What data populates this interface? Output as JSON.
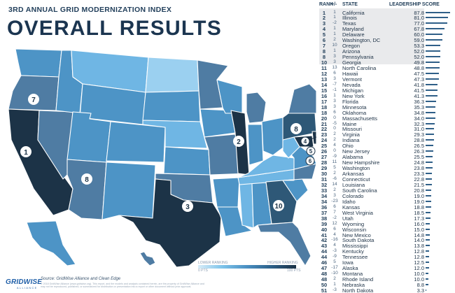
{
  "header": {
    "subtitle": "3RD ANNUAL GRID MODERNIZATION INDEX",
    "title": "OVERALL RESULTS"
  },
  "legend": {
    "low_label": "LOWER RANKING",
    "high_label": "HIGHER RANKING",
    "low_value": "0 PTS",
    "high_value": "100 PTS",
    "gradient_colors": [
      "#d8ecf8",
      "#7cc3ea",
      "#4a8fc2",
      "#2b5f88",
      "#1a3146"
    ]
  },
  "footer": {
    "source": "Source: GridWise Alliance and Clean Edge",
    "fine_print": "© 2018 GridWise Alliance (www.gridwise.org). This report, and the models and analysis contained herein, are the property of GridWise Alliance and may not be reproduced, published, or summarized for distribution or presentation into a report or other document without prior approval.",
    "logo_text": "GRIDWISE",
    "logo_sub": "ALLIANCE"
  },
  "map_markers": [
    {
      "rank": "1",
      "state": "California"
    },
    {
      "rank": "2",
      "state": "Illinois"
    },
    {
      "rank": "3",
      "state": "Texas"
    },
    {
      "rank": "4",
      "state": "Maryland"
    },
    {
      "rank": "5",
      "state": "Delaware"
    },
    {
      "rank": "6",
      "state": "Washington, DC"
    },
    {
      "rank": "7",
      "state": "Oregon"
    },
    {
      "rank": "8",
      "state": "Arizona"
    },
    {
      "rank": "8",
      "state": "Pennsylvania"
    },
    {
      "rank": "10",
      "state": "Georgia"
    }
  ],
  "map_colors": {
    "tier_top": "#1c3347",
    "tier_high": "#2e5877",
    "tier_upper": "#4f7ca3",
    "tier_mid": "#4d94c6",
    "tier_low": "#6fb6e4",
    "tier_lowest": "#9bd0f0",
    "border": "#ffffff"
  },
  "chart_data": {
    "type": "bar",
    "title": "OVERALL RESULTS",
    "columns": [
      "RANK",
      "+/-",
      "STATE",
      "LEADERSHIP SCORE"
    ],
    "xlim": [
      0,
      100
    ],
    "highlight_top": 10,
    "bar_color": "#2f5f88",
    "rows": [
      {
        "rank": "1",
        "change": "1",
        "state": "California",
        "score": "87.8",
        "value": 87.8
      },
      {
        "rank": "2",
        "change": "1",
        "state": "Illinois",
        "score": "81.0",
        "value": 81.0
      },
      {
        "rank": "3",
        "change": "-2",
        "state": "Texas",
        "score": "77.0",
        "value": 77.0
      },
      {
        "rank": "4",
        "change": "1",
        "state": "Maryland",
        "score": "67.8",
        "value": 67.8
      },
      {
        "rank": "5",
        "change": "1",
        "state": "Delaware",
        "score": "60.0",
        "value": 60.0
      },
      {
        "rank": "6",
        "change": "2",
        "state": "Washington, DC",
        "score": "59.0",
        "value": 59.0
      },
      {
        "rank": "7",
        "change": "10",
        "state": "Oregon",
        "score": "53.3",
        "value": 53.3
      },
      {
        "rank": "8",
        "change": "1",
        "state": "Arizona",
        "score": "52.0",
        "value": 52.0
      },
      {
        "rank": "8",
        "change": "3",
        "state": "Pennsylvania",
        "score": "52.0",
        "value": 52.0
      },
      {
        "rank": "10",
        "change": "3",
        "state": "Georgia",
        "score": "49.8",
        "value": 49.8
      },
      {
        "rank": "11",
        "change": "13",
        "state": "North Carolina",
        "score": "48.8",
        "value": 48.8
      },
      {
        "rank": "12",
        "change": "6",
        "state": "Hawaii",
        "score": "47.5",
        "value": 47.5
      },
      {
        "rank": "13",
        "change": "3",
        "state": "Vermont",
        "score": "47.3",
        "value": 47.3
      },
      {
        "rank": "14",
        "change": "-7",
        "state": "Nevada",
        "score": "41.8",
        "value": 41.8
      },
      {
        "rank": "15",
        "change": "-1",
        "state": "Michigan",
        "score": "41.5",
        "value": 41.5
      },
      {
        "rank": "16",
        "change": "1",
        "state": "New York",
        "score": "41.3",
        "value": 41.3
      },
      {
        "rank": "17",
        "change": "3",
        "state": "Florida",
        "score": "36.3",
        "value": 36.3
      },
      {
        "rank": "18",
        "change": "3",
        "state": "Minnesota",
        "score": "35.3",
        "value": 35.3
      },
      {
        "rank": "18",
        "change": "6",
        "state": "Oklahoma",
        "score": "34.8",
        "value": 34.8
      },
      {
        "rank": "20",
        "change": "0",
        "state": "Massachusetts",
        "score": "34.0",
        "value": 34.0
      },
      {
        "rank": "21",
        "change": "-5",
        "state": "Maine",
        "score": "32.3",
        "value": 32.3
      },
      {
        "rank": "22",
        "change": "0",
        "state": "Missouri",
        "score": "31.0",
        "value": 31.0
      },
      {
        "rank": "23",
        "change": "2",
        "state": "Virginia",
        "score": "29.3",
        "value": 29.3
      },
      {
        "rank": "24",
        "change": "2",
        "state": "Indiana",
        "score": "28.8",
        "value": 28.8
      },
      {
        "rank": "25",
        "change": "4",
        "state": "Ohio",
        "score": "26.5",
        "value": 26.5
      },
      {
        "rank": "26",
        "change": "0",
        "state": "New Jersey",
        "score": "26.3",
        "value": 26.3
      },
      {
        "rank": "27",
        "change": "-9",
        "state": "Alabama",
        "score": "25.5",
        "value": 25.5
      },
      {
        "rank": "28",
        "change": "11",
        "state": "New Hampshire",
        "score": "24.8",
        "value": 24.8
      },
      {
        "rank": "29",
        "change": "5",
        "state": "Washington",
        "score": "23.8",
        "value": 23.8
      },
      {
        "rank": "30",
        "change": "2",
        "state": "Arkansas",
        "score": "23.3",
        "value": 23.3
      },
      {
        "rank": "31",
        "change": "-6",
        "state": "Connecticut",
        "score": "22.8",
        "value": 22.8
      },
      {
        "rank": "32",
        "change": "14",
        "state": "Louisiana",
        "score": "21.5",
        "value": 21.5
      },
      {
        "rank": "33",
        "change": "2",
        "state": "South Carolina",
        "score": "20.8",
        "value": 20.8
      },
      {
        "rank": "34",
        "change": "3",
        "state": "Colorado",
        "score": "19.0",
        "value": 19.0
      },
      {
        "rank": "34",
        "change": "-23",
        "state": "Idaho",
        "score": "19.0",
        "value": 19.0
      },
      {
        "rank": "36",
        "change": "6",
        "state": "Kansas",
        "score": "18.8",
        "value": 18.8
      },
      {
        "rank": "37",
        "change": "7",
        "state": "West Virginia",
        "score": "18.5",
        "value": 18.5
      },
      {
        "rank": "38",
        "change": "-2",
        "state": "Utah",
        "score": "17.3",
        "value": 17.3
      },
      {
        "rank": "39",
        "change": "12",
        "state": "Wyoming",
        "score": "16.0",
        "value": 16.0
      },
      {
        "rank": "40",
        "change": "6",
        "state": "Wisconsin",
        "score": "15.0",
        "value": 15.0
      },
      {
        "rank": "41",
        "change": "4",
        "state": "New Mexico",
        "score": "14.8",
        "value": 14.8
      },
      {
        "rank": "42",
        "change": "-16",
        "state": "South Dakota",
        "score": "14.0",
        "value": 14.0
      },
      {
        "rank": "43",
        "change": "4",
        "state": "Mississippi",
        "score": "13.8",
        "value": 13.8
      },
      {
        "rank": "44",
        "change": "-3",
        "state": "Kentucky",
        "score": "12.8",
        "value": 12.8
      },
      {
        "rank": "44",
        "change": "-9",
        "state": "Tennessee",
        "score": "12.8",
        "value": 12.8
      },
      {
        "rank": "46",
        "change": "5",
        "state": "Iowa",
        "score": "12.5",
        "value": 12.5
      },
      {
        "rank": "47",
        "change": "-17",
        "state": "Alaska",
        "score": "12.0",
        "value": 12.0
      },
      {
        "rank": "48",
        "change": "-10",
        "state": "Montana",
        "score": "10.0",
        "value": 10.0
      },
      {
        "rank": "48",
        "change": "2",
        "state": "Rhode Island",
        "score": "10.0",
        "value": 10.0
      },
      {
        "rank": "50",
        "change": "1",
        "state": "Nebraska",
        "score": "8.8",
        "value": 8.8
      },
      {
        "rank": "51",
        "change": "-3",
        "state": "North Dakota",
        "score": "3.3",
        "value": 3.3
      }
    ]
  }
}
